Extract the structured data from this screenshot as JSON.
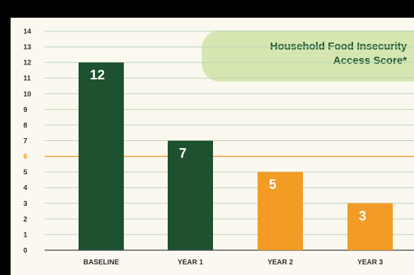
{
  "chart_data": {
    "type": "bar",
    "title_lines": [
      "Household Food Insecurity",
      "Access Score*"
    ],
    "categories": [
      "BASELINE",
      "YEAR 1",
      "YEAR 2",
      "YEAR 3"
    ],
    "values": [
      12,
      7,
      5,
      3
    ],
    "data_labels": [
      "12",
      "7",
      "5",
      "3"
    ],
    "bar_colors": [
      "#1d5130",
      "#1d5130",
      "#f29c26",
      "#f29c26"
    ],
    "ylim": [
      0,
      14
    ],
    "yticks": [
      0,
      1,
      2,
      3,
      4,
      5,
      6,
      7,
      8,
      9,
      10,
      11,
      12,
      13,
      14
    ],
    "reference_line": {
      "value": 6,
      "color": "#f2961e"
    },
    "grid": true,
    "gridline_color": "#b9d3b5",
    "title_box_color": "#d6e6b0",
    "xlabel": "",
    "ylabel": ""
  }
}
